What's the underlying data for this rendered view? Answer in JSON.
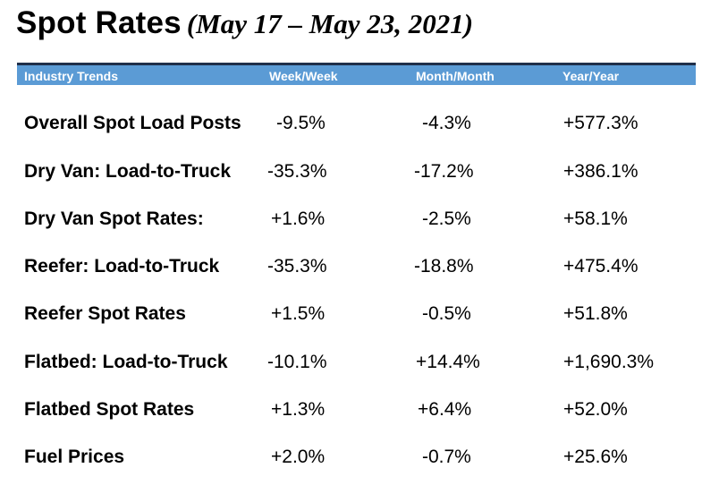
{
  "title": {
    "main": "Spot Rates",
    "sub": "(May 17 – May 23, 2021)"
  },
  "header": {
    "col1": "Industry Trends",
    "col2": "Week/Week",
    "col3": "Month/Month",
    "col4": "Year/Year"
  },
  "header_color": "#5b9bd5",
  "rows": [
    {
      "label": "Overall Spot Load Posts",
      "week": "-9.5%",
      "month": "-4.3%",
      "year": "+577.3%"
    },
    {
      "label": "Dry Van: Load-to-Truck",
      "week": "-35.3%",
      "month": "-17.2%",
      "year": "+386.1%"
    },
    {
      "label": "Dry Van Spot Rates:",
      "week": "+1.6%",
      "month": "-2.5%",
      "year": "+58.1%"
    },
    {
      "label": "Reefer: Load-to-Truck",
      "week": "-35.3%",
      "month": "-18.8%",
      "year": "+475.4%"
    },
    {
      "label": "Reefer Spot Rates",
      "week": "+1.5%",
      "month": "-0.5%",
      "year": "+51.8%"
    },
    {
      "label": "Flatbed: Load-to-Truck",
      "week": "-10.1%",
      "month": "+14.4%",
      "year": "+1,690.3%"
    },
    {
      "label": "Flatbed Spot Rates",
      "week": "+1.3%",
      "month": "+6.4%",
      "year": "+52.0%"
    },
    {
      "label": "Fuel Prices",
      "week": "+2.0%",
      "month": "-0.7%",
      "year": "+25.6%"
    }
  ]
}
